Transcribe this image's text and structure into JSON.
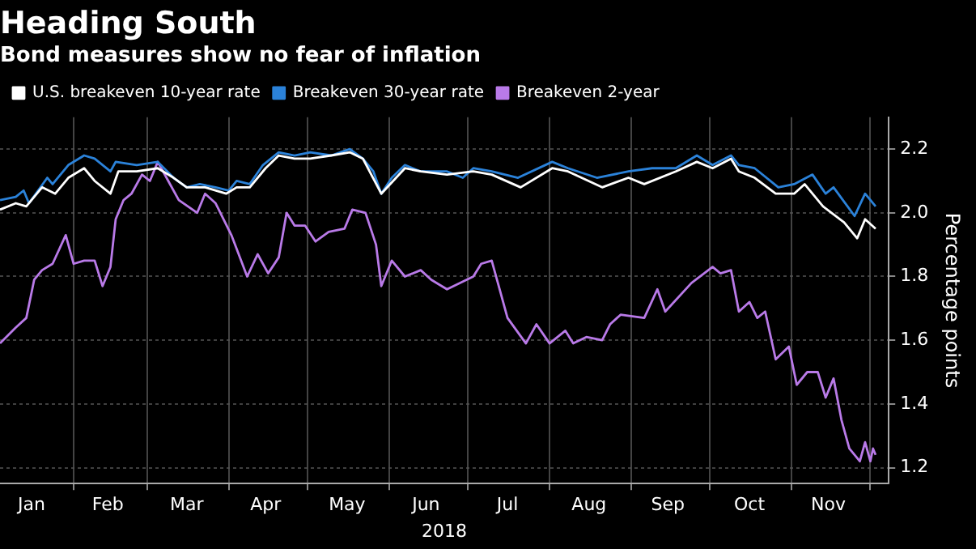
{
  "chart_data": {
    "type": "line",
    "title": "Heading South",
    "subtitle": "Bond measures show no fear of inflation",
    "xlabel": "2018",
    "ylabel": "Percentage points",
    "legend": "top left",
    "grid": true,
    "marker": "none",
    "line_style": "solid",
    "xlim": [
      "2018-01-04",
      "2018-12-08"
    ],
    "xticks": [
      {
        "value": "2018-01-16",
        "label": "Jan"
      },
      {
        "value": "2018-02-01",
        "label": null
      },
      {
        "value": "2018-02-14",
        "label": "Feb"
      },
      {
        "value": "2018-03-01",
        "label": null
      },
      {
        "value": "2018-03-16",
        "label": "Mar"
      },
      {
        "value": "2018-04-01",
        "label": null
      },
      {
        "value": "2018-04-15",
        "label": "Apr"
      },
      {
        "value": "2018-05-01",
        "label": null
      },
      {
        "value": "2018-05-16",
        "label": "May"
      },
      {
        "value": "2018-06-01",
        "label": null
      },
      {
        "value": "2018-06-15",
        "label": "Jun"
      },
      {
        "value": "2018-07-01",
        "label": null
      },
      {
        "value": "2018-07-16",
        "label": "Jul"
      },
      {
        "value": "2018-08-01",
        "label": null
      },
      {
        "value": "2018-08-16",
        "label": "Aug"
      },
      {
        "value": "2018-09-01",
        "label": null
      },
      {
        "value": "2018-09-15",
        "label": "Sep"
      },
      {
        "value": "2018-10-01",
        "label": null
      },
      {
        "value": "2018-10-16",
        "label": "Oct"
      },
      {
        "value": "2018-11-01",
        "label": null
      },
      {
        "value": "2018-11-15",
        "label": "Nov"
      },
      {
        "value": "2018-12-01",
        "label": null
      }
    ],
    "ylim": [
      1.15,
      2.3
    ],
    "yticks": [
      {
        "value": 1.2,
        "label": "1.2"
      },
      {
        "value": 1.4,
        "label": "1.4"
      },
      {
        "value": 1.6,
        "label": "1.6"
      },
      {
        "value": 1.8,
        "label": "1.8"
      },
      {
        "value": 2.0,
        "label": "2.0"
      },
      {
        "value": 2.2,
        "label": "2.2"
      }
    ],
    "series": [
      {
        "name": "U.S. breakeven 10-year rate",
        "color": "#ffffff",
        "x": [
          "2018-01-04",
          "2018-01-10",
          "2018-01-14",
          "2018-01-20",
          "2018-01-25",
          "2018-01-30",
          "2018-02-05",
          "2018-02-09",
          "2018-02-15",
          "2018-02-18",
          "2018-02-25",
          "2018-03-05",
          "2018-03-11",
          "2018-03-16",
          "2018-03-23",
          "2018-03-31",
          "2018-04-04",
          "2018-04-09",
          "2018-04-15",
          "2018-04-20",
          "2018-04-26",
          "2018-05-02",
          "2018-05-10",
          "2018-05-17",
          "2018-05-22",
          "2018-05-29",
          "2018-06-07",
          "2018-06-13",
          "2018-06-23",
          "2018-07-03",
          "2018-07-10",
          "2018-07-21",
          "2018-08-02",
          "2018-08-08",
          "2018-08-21",
          "2018-08-31",
          "2018-09-06",
          "2018-09-18",
          "2018-09-26",
          "2018-10-02",
          "2018-10-09",
          "2018-10-12",
          "2018-10-18",
          "2018-10-26",
          "2018-11-02",
          "2018-11-06",
          "2018-11-13",
          "2018-11-21",
          "2018-11-26",
          "2018-11-29",
          "2018-12-03"
        ],
        "values": [
          2.01,
          2.03,
          2.02,
          2.08,
          2.06,
          2.11,
          2.14,
          2.1,
          2.06,
          2.13,
          2.13,
          2.14,
          2.11,
          2.08,
          2.08,
          2.06,
          2.08,
          2.08,
          2.14,
          2.18,
          2.17,
          2.17,
          2.18,
          2.19,
          2.17,
          2.06,
          2.14,
          2.13,
          2.12,
          2.13,
          2.12,
          2.08,
          2.14,
          2.13,
          2.08,
          2.11,
          2.09,
          2.13,
          2.16,
          2.14,
          2.17,
          2.13,
          2.11,
          2.06,
          2.06,
          2.09,
          2.02,
          1.97,
          1.92,
          1.98,
          1.95
        ]
      },
      {
        "name": "Breakeven 30-year rate",
        "color": "#2b82d9",
        "x": [
          "2018-01-04",
          "2018-01-10",
          "2018-01-13",
          "2018-01-15",
          "2018-01-22",
          "2018-01-24",
          "2018-01-30",
          "2018-02-05",
          "2018-02-09",
          "2018-02-15",
          "2018-02-17",
          "2018-02-25",
          "2018-03-05",
          "2018-03-11",
          "2018-03-16",
          "2018-03-21",
          "2018-03-27",
          "2018-04-01",
          "2018-04-04",
          "2018-04-09",
          "2018-04-14",
          "2018-04-20",
          "2018-04-26",
          "2018-05-02",
          "2018-05-10",
          "2018-05-17",
          "2018-05-22",
          "2018-05-26",
          "2018-05-29",
          "2018-06-02",
          "2018-06-07",
          "2018-06-13",
          "2018-06-23",
          "2018-06-29",
          "2018-07-03",
          "2018-07-10",
          "2018-07-20",
          "2018-08-02",
          "2018-08-08",
          "2018-08-19",
          "2018-08-31",
          "2018-09-09",
          "2018-09-18",
          "2018-09-26",
          "2018-10-02",
          "2018-10-09",
          "2018-10-12",
          "2018-10-18",
          "2018-10-27",
          "2018-11-02",
          "2018-11-09",
          "2018-11-14",
          "2018-11-17",
          "2018-11-25",
          "2018-11-29",
          "2018-12-03"
        ],
        "values": [
          2.04,
          2.05,
          2.07,
          2.03,
          2.11,
          2.09,
          2.15,
          2.18,
          2.17,
          2.13,
          2.16,
          2.15,
          2.16,
          2.11,
          2.08,
          2.09,
          2.08,
          2.07,
          2.1,
          2.09,
          2.15,
          2.19,
          2.18,
          2.19,
          2.18,
          2.2,
          2.17,
          2.13,
          2.06,
          2.11,
          2.15,
          2.13,
          2.13,
          2.11,
          2.14,
          2.13,
          2.11,
          2.16,
          2.14,
          2.11,
          2.13,
          2.14,
          2.14,
          2.18,
          2.15,
          2.18,
          2.15,
          2.14,
          2.08,
          2.09,
          2.12,
          2.06,
          2.08,
          1.99,
          2.06,
          2.02
        ]
      },
      {
        "name": "Breakeven 2-year",
        "color": "#b97ae8",
        "x": [
          "2018-01-04",
          "2018-01-10",
          "2018-01-14",
          "2018-01-17",
          "2018-01-20",
          "2018-01-24",
          "2018-01-29",
          "2018-02-01",
          "2018-02-05",
          "2018-02-09",
          "2018-02-12",
          "2018-02-15",
          "2018-02-17",
          "2018-02-20",
          "2018-02-23",
          "2018-02-27",
          "2018-03-02",
          "2018-03-05",
          "2018-03-09",
          "2018-03-13",
          "2018-03-20",
          "2018-03-23",
          "2018-03-27",
          "2018-04-02",
          "2018-04-08",
          "2018-04-12",
          "2018-04-16",
          "2018-04-20",
          "2018-04-23",
          "2018-04-26",
          "2018-04-30",
          "2018-05-04",
          "2018-05-09",
          "2018-05-15",
          "2018-05-18",
          "2018-05-23",
          "2018-05-27",
          "2018-05-29",
          "2018-06-02",
          "2018-06-07",
          "2018-06-13",
          "2018-06-17",
          "2018-06-23",
          "2018-07-03",
          "2018-07-06",
          "2018-07-10",
          "2018-07-13",
          "2018-07-16",
          "2018-07-23",
          "2018-07-27",
          "2018-08-01",
          "2018-08-07",
          "2018-08-10",
          "2018-08-15",
          "2018-08-21",
          "2018-08-24",
          "2018-08-28",
          "2018-09-06",
          "2018-09-11",
          "2018-09-14",
          "2018-09-24",
          "2018-10-02",
          "2018-10-05",
          "2018-10-09",
          "2018-10-12",
          "2018-10-16",
          "2018-10-19",
          "2018-10-22",
          "2018-10-26",
          "2018-10-31",
          "2018-11-03",
          "2018-11-07",
          "2018-11-11",
          "2018-11-14",
          "2018-11-17",
          "2018-11-20",
          "2018-11-23",
          "2018-11-27",
          "2018-11-29",
          "2018-12-01",
          "2018-12-02",
          "2018-12-03"
        ],
        "values": [
          1.59,
          1.64,
          1.67,
          1.79,
          1.82,
          1.84,
          1.93,
          1.84,
          1.85,
          1.85,
          1.77,
          1.83,
          1.98,
          2.04,
          2.06,
          2.12,
          2.1,
          2.16,
          2.1,
          2.04,
          2.0,
          2.06,
          2.03,
          1.93,
          1.8,
          1.87,
          1.81,
          1.86,
          2.0,
          1.96,
          1.96,
          1.91,
          1.94,
          1.95,
          2.01,
          2.0,
          1.9,
          1.77,
          1.85,
          1.8,
          1.82,
          1.79,
          1.76,
          1.8,
          1.84,
          1.85,
          1.76,
          1.67,
          1.59,
          1.65,
          1.59,
          1.63,
          1.59,
          1.61,
          1.6,
          1.65,
          1.68,
          1.67,
          1.76,
          1.69,
          1.78,
          1.83,
          1.81,
          1.82,
          1.69,
          1.72,
          1.67,
          1.69,
          1.54,
          1.58,
          1.46,
          1.5,
          1.5,
          1.42,
          1.48,
          1.35,
          1.26,
          1.22,
          1.28,
          1.22,
          1.26,
          1.24
        ]
      }
    ]
  }
}
